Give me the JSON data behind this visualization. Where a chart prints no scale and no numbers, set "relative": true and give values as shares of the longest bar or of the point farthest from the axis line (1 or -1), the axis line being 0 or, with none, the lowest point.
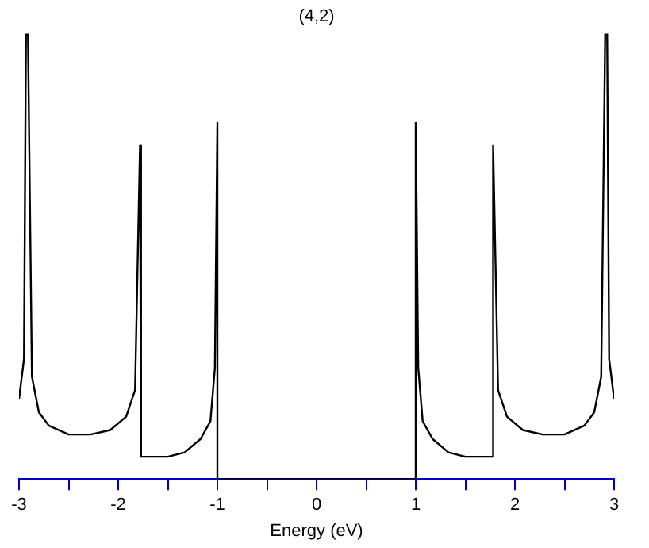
{
  "chart_data": {
    "type": "line",
    "title": "(4,2)",
    "xlabel": "Energy (eV)",
    "relative": true,
    "grid": false,
    "xlim": [
      -3,
      3
    ],
    "xticks": [
      -3,
      {
        "value": -2.5,
        "label": null
      },
      -2,
      {
        "value": -1.5,
        "label": null
      },
      -1,
      {
        "value": -0.5,
        "label": null
      },
      0,
      {
        "value": 0.5,
        "label": null
      },
      1,
      {
        "value": 1.5,
        "label": null
      },
      2,
      {
        "value": 2.5,
        "label": null
      },
      3
    ],
    "series": [
      {
        "color": "#000000",
        "x": [
          -3.0,
          -2.95,
          -2.93,
          -2.91,
          -2.87,
          -2.8,
          -2.7,
          -2.5,
          -2.28,
          -2.08,
          -1.92,
          -1.83,
          -1.78,
          -1.77,
          -1.5,
          -1.33,
          -1.17,
          -1.07,
          -1.025,
          -1.0,
          -1.0,
          1.0,
          1.0,
          1.025,
          1.07,
          1.17,
          1.33,
          1.5,
          1.77,
          1.78,
          1.83,
          1.92,
          2.08,
          2.28,
          2.5,
          2.7,
          2.8,
          2.87,
          2.91,
          2.93,
          2.95,
          3.0
        ],
        "values": [
          0.18,
          0.27,
          1.0,
          1.0,
          0.23,
          0.15,
          0.12,
          0.1,
          0.1,
          0.11,
          0.14,
          0.2,
          0.75,
          0.05,
          0.05,
          0.06,
          0.09,
          0.13,
          0.25,
          0.8,
          0,
          0,
          0.8,
          0.25,
          0.13,
          0.09,
          0.06,
          0.05,
          0.05,
          0.75,
          0.2,
          0.14,
          0.11,
          0.1,
          0.1,
          0.12,
          0.15,
          0.23,
          1.0,
          1.0,
          0.27,
          0.18
        ]
      }
    ]
  }
}
